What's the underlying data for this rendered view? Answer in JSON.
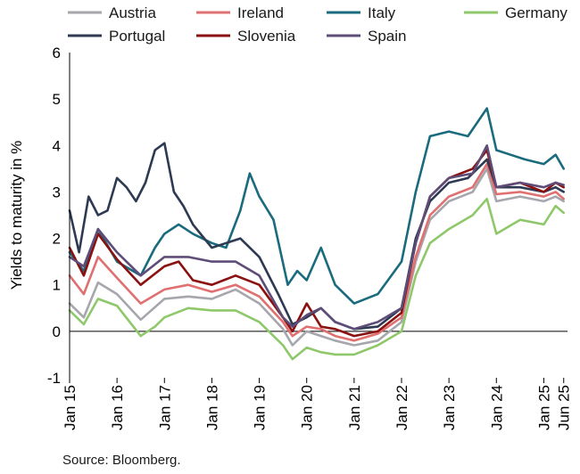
{
  "chart_data": {
    "type": "line",
    "ylabel": "Yields to maturity in %",
    "ylim": [
      -1,
      6
    ],
    "yticks": [
      -1,
      0,
      1,
      2,
      3,
      4,
      5,
      6
    ],
    "xlim": [
      2015.0,
      2025.5
    ],
    "xticks": [
      {
        "label": "Jan 15",
        "x": 2015.0
      },
      {
        "label": "Jan 16",
        "x": 2016.0
      },
      {
        "label": "Jan 17",
        "x": 2017.0
      },
      {
        "label": "Jan 18",
        "x": 2018.0
      },
      {
        "label": "Jan 19",
        "x": 2019.0
      },
      {
        "label": "Jan 20",
        "x": 2020.0
      },
      {
        "label": "Jan 21",
        "x": 2021.0
      },
      {
        "label": "Jan 22",
        "x": 2022.0
      },
      {
        "label": "Jan 23",
        "x": 2023.0
      },
      {
        "label": "Jan 24",
        "x": 2024.0
      },
      {
        "label": "Jan 25",
        "x": 2025.0
      },
      {
        "label": "Jun 25",
        "x": 2025.42
      }
    ],
    "legend_position": "top",
    "zero_line": true,
    "series": [
      {
        "name": "Austria",
        "color": "#a6a6ad",
        "x": [
          2015.0,
          2015.3,
          2015.6,
          2016.0,
          2016.5,
          2017.0,
          2017.5,
          2018.0,
          2018.5,
          2019.0,
          2019.5,
          2019.7,
          2020.0,
          2020.3,
          2020.6,
          2021.0,
          2021.5,
          2022.0,
          2022.3,
          2022.6,
          2023.0,
          2023.5,
          2023.8,
          2024.0,
          2024.5,
          2025.0,
          2025.25,
          2025.42
        ],
        "y": [
          0.6,
          0.3,
          1.05,
          0.8,
          0.25,
          0.7,
          0.75,
          0.7,
          0.9,
          0.6,
          0.05,
          -0.3,
          0.0,
          -0.1,
          -0.2,
          -0.3,
          -0.2,
          0.2,
          1.5,
          2.4,
          2.8,
          3.0,
          3.5,
          2.8,
          2.9,
          2.8,
          2.9,
          2.8
        ]
      },
      {
        "name": "Ireland",
        "color": "#e07070",
        "x": [
          2015.0,
          2015.3,
          2015.6,
          2016.0,
          2016.5,
          2017.0,
          2017.5,
          2018.0,
          2018.5,
          2019.0,
          2019.5,
          2019.7,
          2020.0,
          2020.3,
          2020.6,
          2021.0,
          2021.5,
          2022.0,
          2022.3,
          2022.6,
          2023.0,
          2023.5,
          2023.8,
          2024.0,
          2024.5,
          2025.0,
          2025.25,
          2025.42
        ],
        "y": [
          1.2,
          0.8,
          1.6,
          1.15,
          0.6,
          0.9,
          1.0,
          0.85,
          1.0,
          0.75,
          0.2,
          -0.1,
          0.1,
          0.05,
          -0.1,
          -0.2,
          -0.05,
          0.3,
          1.6,
          2.5,
          2.9,
          3.1,
          3.6,
          2.95,
          3.0,
          2.9,
          3.0,
          2.85
        ]
      },
      {
        "name": "Italy",
        "color": "#1a6b7d",
        "x": [
          2015.0,
          2015.3,
          2015.6,
          2016.0,
          2016.5,
          2016.8,
          2017.0,
          2017.3,
          2017.6,
          2018.0,
          2018.3,
          2018.6,
          2018.8,
          2019.0,
          2019.3,
          2019.6,
          2019.8,
          2020.0,
          2020.3,
          2020.6,
          2021.0,
          2021.5,
          2022.0,
          2022.3,
          2022.6,
          2023.0,
          2023.4,
          2023.8,
          2024.0,
          2024.3,
          2024.6,
          2025.0,
          2025.25,
          2025.42
        ],
        "y": [
          1.7,
          1.3,
          2.2,
          1.5,
          1.2,
          1.8,
          2.1,
          2.3,
          2.1,
          1.9,
          1.8,
          2.6,
          3.4,
          2.9,
          2.4,
          1.0,
          1.3,
          1.1,
          1.8,
          1.0,
          0.6,
          0.8,
          1.5,
          3.0,
          4.2,
          4.3,
          4.2,
          4.8,
          3.9,
          3.8,
          3.7,
          3.6,
          3.8,
          3.5
        ]
      },
      {
        "name": "Germany",
        "color": "#8fc86b",
        "x": [
          2015.0,
          2015.3,
          2015.6,
          2016.0,
          2016.5,
          2016.8,
          2017.0,
          2017.5,
          2018.0,
          2018.5,
          2019.0,
          2019.5,
          2019.7,
          2020.0,
          2020.3,
          2020.6,
          2021.0,
          2021.5,
          2022.0,
          2022.3,
          2022.6,
          2023.0,
          2023.5,
          2023.8,
          2024.0,
          2024.5,
          2025.0,
          2025.25,
          2025.42
        ],
        "y": [
          0.45,
          0.15,
          0.7,
          0.55,
          -0.1,
          0.1,
          0.3,
          0.5,
          0.45,
          0.45,
          0.2,
          -0.3,
          -0.6,
          -0.35,
          -0.45,
          -0.5,
          -0.5,
          -0.3,
          0.0,
          1.2,
          1.9,
          2.2,
          2.5,
          2.85,
          2.1,
          2.4,
          2.3,
          2.7,
          2.55
        ]
      },
      {
        "name": "Portugal",
        "color": "#2e3a52",
        "x": [
          2015.0,
          2015.2,
          2015.4,
          2015.6,
          2015.8,
          2016.0,
          2016.2,
          2016.4,
          2016.6,
          2016.8,
          2017.0,
          2017.2,
          2017.4,
          2017.6,
          2017.8,
          2018.0,
          2018.3,
          2018.6,
          2019.0,
          2019.4,
          2019.7,
          2020.0,
          2020.3,
          2020.6,
          2021.0,
          2021.5,
          2022.0,
          2022.3,
          2022.6,
          2023.0,
          2023.4,
          2023.8,
          2024.0,
          2024.5,
          2025.0,
          2025.25,
          2025.42
        ],
        "y": [
          2.6,
          1.7,
          2.9,
          2.5,
          2.6,
          3.3,
          3.1,
          2.8,
          3.2,
          3.9,
          4.05,
          3.0,
          2.7,
          2.3,
          2.05,
          1.8,
          1.9,
          2.0,
          1.6,
          0.8,
          0.15,
          0.3,
          0.5,
          0.2,
          0.05,
          0.1,
          0.5,
          2.0,
          2.8,
          3.2,
          3.3,
          3.7,
          3.1,
          3.1,
          3.0,
          3.1,
          3.0
        ]
      },
      {
        "name": "Slovenia",
        "color": "#8b1010",
        "x": [
          2015.0,
          2015.3,
          2015.6,
          2016.0,
          2016.5,
          2017.0,
          2017.3,
          2017.6,
          2018.0,
          2018.5,
          2019.0,
          2019.5,
          2019.7,
          2020.0,
          2020.3,
          2020.6,
          2021.0,
          2021.5,
          2022.0,
          2022.3,
          2022.6,
          2023.0,
          2023.5,
          2023.8,
          2024.0,
          2024.5,
          2025.0,
          2025.25,
          2025.42
        ],
        "y": [
          1.8,
          1.2,
          2.1,
          1.55,
          1.0,
          1.4,
          1.5,
          1.1,
          1.0,
          1.2,
          1.0,
          0.3,
          0.0,
          0.6,
          0.1,
          0.05,
          -0.1,
          0.0,
          0.4,
          1.9,
          2.9,
          3.3,
          3.5,
          3.9,
          3.1,
          3.2,
          3.0,
          3.2,
          3.1
        ]
      },
      {
        "name": "Spain",
        "color": "#5e4d78",
        "x": [
          2015.0,
          2015.3,
          2015.6,
          2016.0,
          2016.5,
          2017.0,
          2017.5,
          2018.0,
          2018.5,
          2019.0,
          2019.5,
          2019.7,
          2020.0,
          2020.3,
          2020.6,
          2021.0,
          2021.5,
          2022.0,
          2022.3,
          2022.6,
          2023.0,
          2023.5,
          2023.8,
          2024.0,
          2024.5,
          2025.0,
          2025.25,
          2025.42
        ],
        "y": [
          1.6,
          1.4,
          2.2,
          1.7,
          1.2,
          1.6,
          1.6,
          1.5,
          1.5,
          1.2,
          0.3,
          0.1,
          0.35,
          0.5,
          0.2,
          0.05,
          0.2,
          0.5,
          1.9,
          2.9,
          3.3,
          3.4,
          4.0,
          3.1,
          3.2,
          3.1,
          3.2,
          3.15
        ]
      }
    ]
  },
  "source_note": "Source: Bloomberg."
}
